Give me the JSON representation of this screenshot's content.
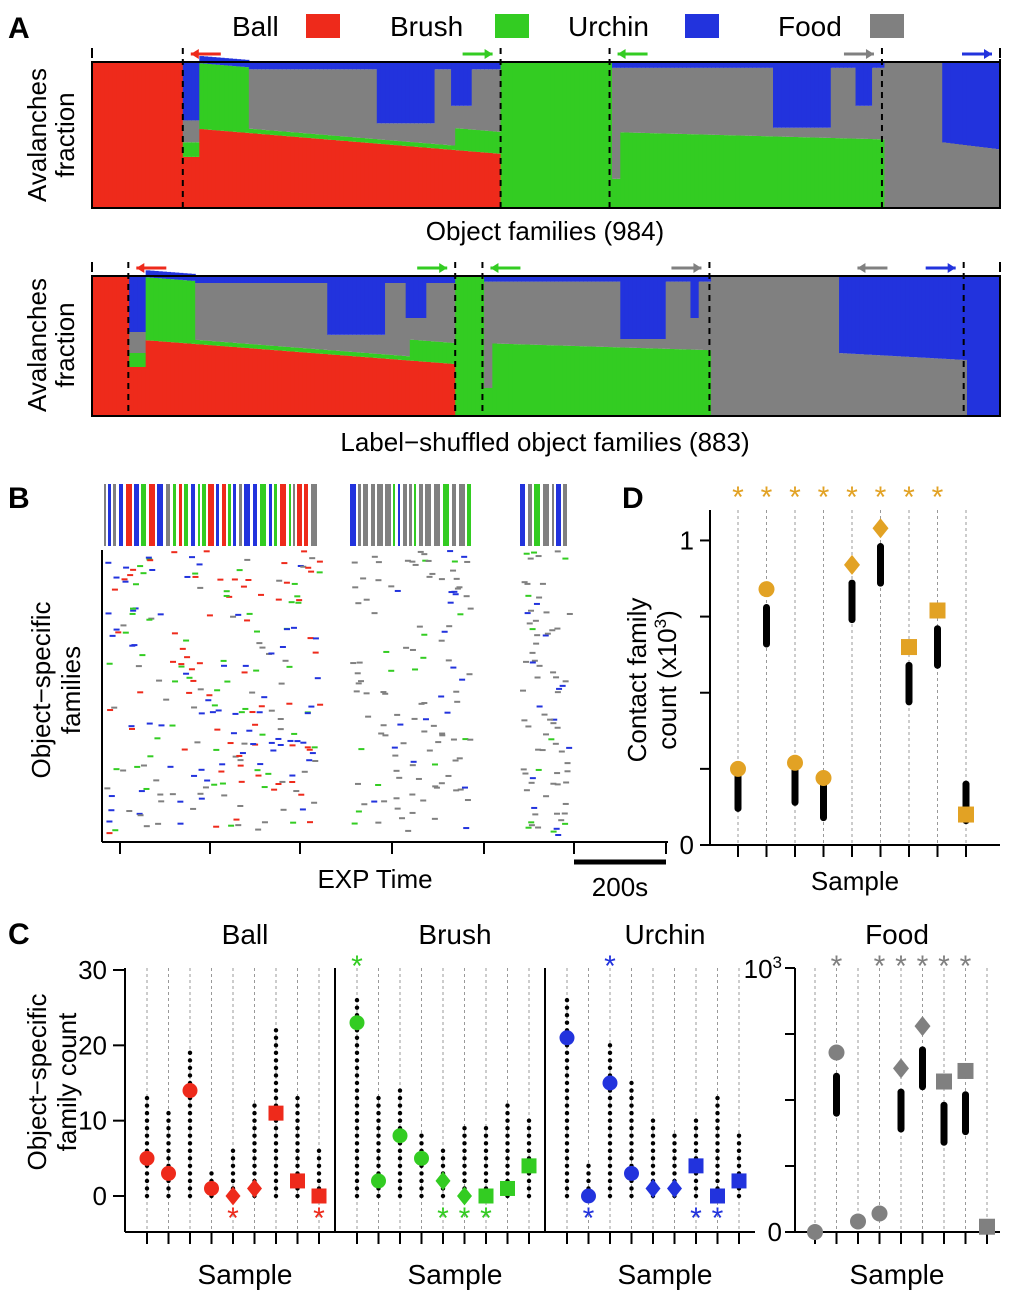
{
  "colors": {
    "Ball": "#ee2a1b",
    "Brush": "#33cc22",
    "Urchin": "#2233dd",
    "Food": "#808080",
    "gold": "#e2a224",
    "black": "#000000"
  },
  "legend": [
    "Ball",
    "Brush",
    "Urchin",
    "Food"
  ],
  "panel_letters": {
    "a": "A",
    "b": "B",
    "c": "C",
    "d": "D"
  },
  "panel_a": {
    "ylabel_line1": "Avalanches",
    "ylabel_line2": "fraction",
    "top_title": "Object families (984)",
    "bottom_title": "Label−shuffled object families (883)"
  },
  "panel_b": {
    "ylabel_line1": "Object−specific",
    "ylabel_line2": "families",
    "xlabel": "EXP Time",
    "scalebar_label": "200s"
  },
  "panel_c": {
    "ylabel_line1": "Object−specific",
    "ylabel_line2": "family count",
    "xlabel": "Sample",
    "ytick_labels": [
      "0",
      "10",
      "20",
      "30"
    ],
    "food_ytick_top": "10",
    "food_ytick_top_exp": "3",
    "food_ytick_zero": "0"
  },
  "panel_d": {
    "ylabel_line1": "Contact family",
    "ylabel_line2": "count (x10",
    "ylabel_exp": "3",
    "ylabel_close": ")",
    "xlabel": "Sample",
    "ytick_labels": [
      "0",
      "1"
    ],
    "star": "*"
  },
  "chart_data": [
    {
      "panel": "A-top",
      "type": "area",
      "title": "Object families (984)",
      "ylabel": "Avalanches fraction",
      "ylim": [
        0,
        1
      ],
      "series_order": [
        "Ball",
        "Brush",
        "Food",
        "Urchin"
      ],
      "groups": [
        "Ball",
        "Brush",
        "Food",
        "Urchin"
      ],
      "group_breaks": [
        0.0,
        0.1,
        0.45,
        0.57,
        0.87,
        1.0
      ],
      "columns": [
        [
          0.0,
          1.0,
          0.0,
          0.0,
          0.0
        ],
        [
          0.1,
          0.48,
          0.0,
          0.52,
          0.0
        ],
        [
          0.14,
          0.46,
          0.54,
          0.0,
          0.0
        ],
        [
          0.34,
          0.45,
          0.05,
          0.5,
          0.0
        ],
        [
          0.66,
          0.38,
          0.05,
          0.18,
          0.39
        ],
        [
          0.85,
          0.35,
          0.4,
          0.05,
          0.2
        ],
        [
          1.0,
          0.36,
          0.38,
          0.13,
          0.13
        ]
      ]
    },
    {
      "panel": "A-bottom",
      "type": "area",
      "title": "Label−shuffled object families (883)",
      "ylabel": "Avalanches fraction",
      "ylim": [
        0,
        1
      ]
    },
    {
      "panel": "B",
      "type": "scatter",
      "xlabel": "EXP Time",
      "ylabel": "Object−specific families",
      "categories": [
        "Ball",
        "Brush",
        "Urchin",
        "Food"
      ],
      "segments": [
        "early",
        "middle",
        "late"
      ],
      "scalebar": "200s"
    },
    {
      "panel": "C",
      "type": "scatter",
      "xlabel": "Sample",
      "ylabel": "Object−specific family count",
      "ylim": [
        0,
        30
      ],
      "series": [
        {
          "name": "Ball",
          "values": [
            5,
            3,
            14,
            1,
            0,
            1,
            11,
            2,
            0
          ],
          "markers": [
            "circle",
            "circle",
            "circle",
            "circle",
            "diamond",
            "diamond",
            "square",
            "square",
            "square"
          ],
          "significant": [
            5,
            9
          ]
        },
        {
          "name": "Brush",
          "values": [
            23,
            2,
            8,
            5,
            2,
            0,
            0,
            1,
            4
          ],
          "markers": [
            "circle",
            "circle",
            "circle",
            "circle",
            "diamond",
            "diamond",
            "square",
            "square",
            "square"
          ],
          "significant": [
            1,
            5,
            6,
            7
          ]
        },
        {
          "name": "Urchin",
          "values": [
            21,
            0,
            15,
            3,
            1,
            1,
            4,
            0,
            2
          ],
          "markers": [
            "circle",
            "circle",
            "circle",
            "circle",
            "diamond",
            "diamond",
            "square",
            "square",
            "square"
          ],
          "significant": [
            2,
            3,
            7,
            8
          ]
        },
        {
          "name": "Food",
          "values": [
            0,
            680,
            40,
            70,
            620,
            780,
            570,
            610,
            20
          ],
          "markers": [
            "circle",
            "circle",
            "circle",
            "circle",
            "diamond",
            "diamond",
            "square",
            "square",
            "square"
          ],
          "significant": [
            2,
            4,
            5,
            6,
            7,
            8
          ],
          "ylim": [
            0,
            1000
          ]
        }
      ]
    },
    {
      "panel": "D",
      "type": "scatter",
      "xlabel": "Sample",
      "ylabel": "Contact family count (x10^3)",
      "ylim": [
        0,
        1.1
      ],
      "values": [
        0.25,
        0.84,
        0.27,
        0.22,
        0.92,
        1.04,
        0.65,
        0.77,
        0.1
      ],
      "markers": [
        "circle",
        "circle",
        "circle",
        "circle",
        "diamond",
        "diamond",
        "square",
        "square",
        "square"
      ],
      "significant": [
        1,
        2,
        3,
        4,
        5,
        6,
        7,
        8
      ]
    }
  ]
}
